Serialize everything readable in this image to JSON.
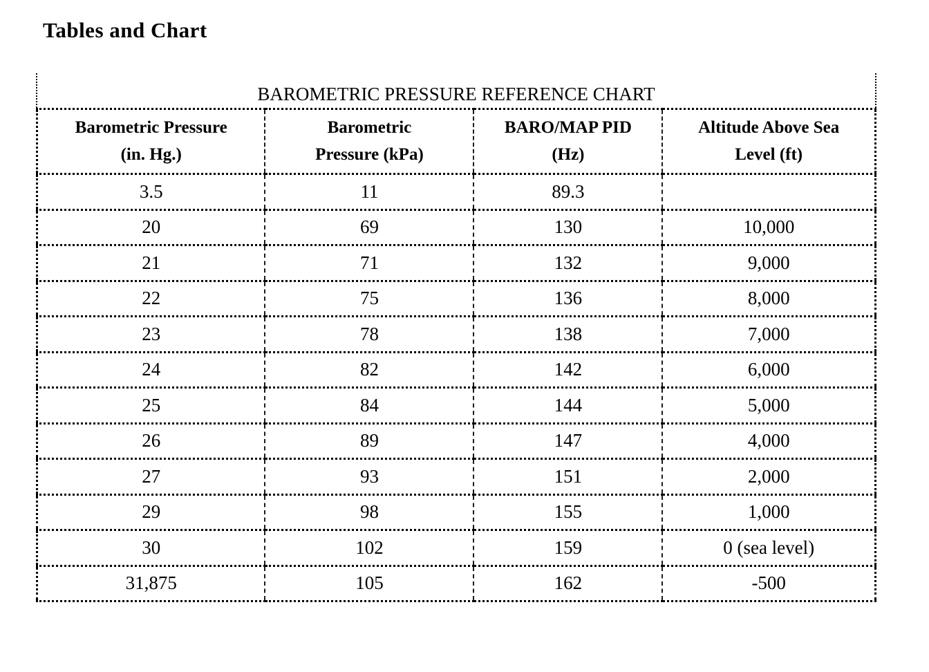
{
  "page": {
    "heading": "Tables and Chart"
  },
  "reference_chart": {
    "title": "BAROMETRIC PRESSURE REFERENCE CHART",
    "columns": [
      {
        "line1": "Barometric Pressure",
        "line2": "(in. Hg.)"
      },
      {
        "line1": "Barometric",
        "line2": "Pressure (kPa)"
      },
      {
        "line1": "BARO/MAP PID",
        "line2": "(Hz)"
      },
      {
        "line1": "Altitude Above Sea",
        "line2": "Level (ft)"
      }
    ],
    "rows": [
      [
        "3.5",
        "11",
        "89.3",
        ""
      ],
      [
        "20",
        "69",
        "130",
        "10,000"
      ],
      [
        "21",
        "71",
        "132",
        "9,000"
      ],
      [
        "22",
        "75",
        "136",
        "8,000"
      ],
      [
        "23",
        "78",
        "138",
        "7,000"
      ],
      [
        "24",
        "82",
        "142",
        "6,000"
      ],
      [
        "25",
        "84",
        "144",
        "5,000"
      ],
      [
        "26",
        "89",
        "147",
        "4,000"
      ],
      [
        "27",
        "93",
        "151",
        "2,000"
      ],
      [
        "29",
        "98",
        "155",
        "1,000"
      ],
      [
        "30",
        "102",
        "159",
        "0 (sea level)"
      ],
      [
        "31,875",
        "105",
        "162",
        "-500"
      ]
    ],
    "colors": {
      "text": "#000000",
      "background": "#ffffff",
      "border": "#000000"
    }
  }
}
